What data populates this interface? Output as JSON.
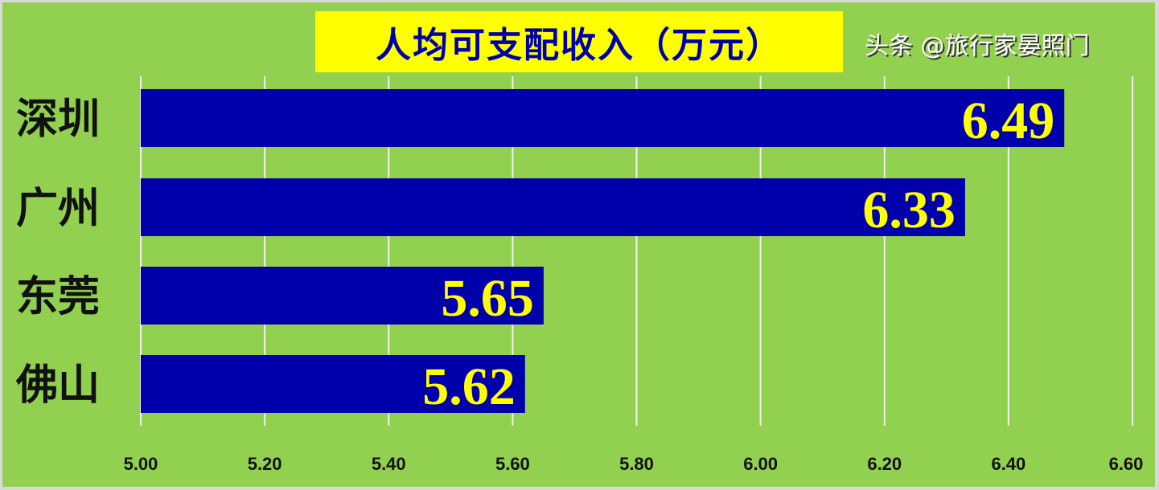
{
  "chart_data": {
    "type": "bar",
    "orientation": "horizontal",
    "title": "人均可支配收入（万元）",
    "categories": [
      "深圳",
      "广州",
      "东莞",
      "佛山"
    ],
    "values": [
      6.49,
      6.33,
      5.65,
      5.62
    ],
    "xlim": [
      5.0,
      6.6
    ],
    "xticks": [
      "5.00",
      "5.20",
      "5.40",
      "5.60",
      "5.80",
      "6.00",
      "6.20",
      "6.40",
      "6.60"
    ],
    "grid": true,
    "colors": {
      "bar": "#0000aa",
      "label": "#ffff00",
      "background": "#92d050",
      "title_bg": "#ffff00",
      "title_text": "#0000aa"
    }
  },
  "watermark": "头条 @旅行家晏照门"
}
